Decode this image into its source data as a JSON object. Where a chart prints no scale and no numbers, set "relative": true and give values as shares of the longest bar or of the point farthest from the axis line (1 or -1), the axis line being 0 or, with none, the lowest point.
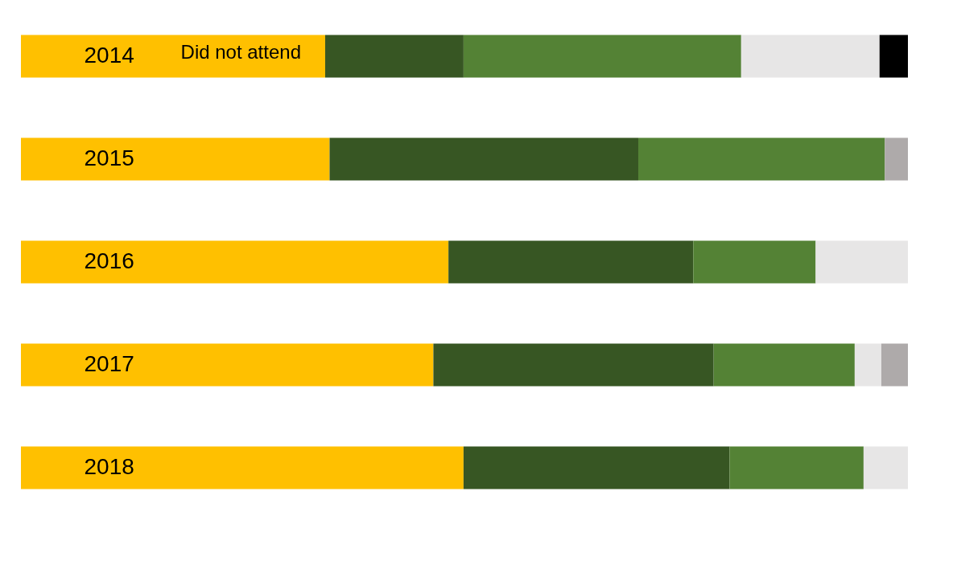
{
  "chart_data": {
    "type": "bar",
    "orientation": "horizontal",
    "stacked": true,
    "relative": true,
    "legend": false,
    "categories": [
      "2014",
      "2015",
      "2016",
      "2017",
      "2018"
    ],
    "series": [
      {
        "name": "Did not attend",
        "color": "#ffc000",
        "values": [
          0.343,
          0.348,
          0.482,
          0.465,
          0.499
        ]
      },
      {
        "color": "#375623",
        "values": [
          0.156,
          0.348,
          0.276,
          0.316,
          0.3
        ]
      },
      {
        "color": "#548235",
        "values": [
          0.313,
          0.278,
          0.138,
          0.159,
          0.151
        ]
      },
      {
        "color": "#e7e6e6",
        "values": [
          0.156,
          null,
          0.104,
          0.03,
          0.05
        ]
      },
      {
        "color": "#aeaaaa",
        "values": [
          null,
          0.026,
          null,
          0.03,
          null
        ]
      },
      {
        "color": "#000000",
        "values": [
          0.032,
          null,
          null,
          null,
          null
        ]
      }
    ]
  }
}
